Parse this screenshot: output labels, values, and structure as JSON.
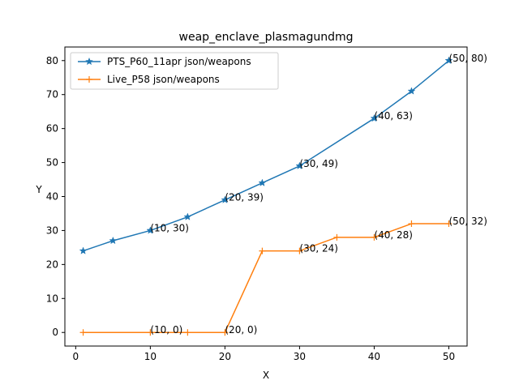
{
  "chart_data": {
    "type": "line",
    "title": "weap_enclave_plasmagundmg",
    "xlabel": "X",
    "ylabel": "Y",
    "xlim": [
      -1.45,
      52.45
    ],
    "ylim": [
      -4.0,
      84.0
    ],
    "xticks": [
      0,
      10,
      20,
      30,
      40,
      50
    ],
    "yticks": [
      0,
      10,
      20,
      30,
      40,
      50,
      60,
      70,
      80
    ],
    "grid": false,
    "legend_position": "upper-left",
    "series": [
      {
        "name": "PTS_P60_11apr json/weapons",
        "color": "#1f77b4",
        "marker": "star",
        "x": [
          1,
          5,
          10,
          15,
          20,
          25,
          30,
          40,
          45,
          50
        ],
        "y": [
          24,
          27,
          30,
          34,
          39,
          44,
          49,
          63,
          71,
          80
        ]
      },
      {
        "name": "Live_P58 json/weapons",
        "color": "#ff7f0e",
        "marker": "plus",
        "x": [
          1,
          10,
          15,
          20,
          25,
          30,
          35,
          40,
          45,
          50
        ],
        "y": [
          0,
          0,
          0,
          0,
          24,
          24,
          28,
          28,
          32,
          32
        ]
      }
    ],
    "annotations": [
      {
        "text": "(10, 30)",
        "x": 10,
        "y": 30,
        "color": "#000000"
      },
      {
        "text": "(20, 39)",
        "x": 20,
        "y": 39,
        "color": "#000000"
      },
      {
        "text": "(30, 49)",
        "x": 30,
        "y": 49,
        "color": "#000000"
      },
      {
        "text": "(40, 63)",
        "x": 40,
        "y": 63,
        "color": "#000000"
      },
      {
        "text": "(50, 80)",
        "x": 50,
        "y": 80,
        "color": "#000000"
      },
      {
        "text": "(10, 0)",
        "x": 10,
        "y": 0,
        "color": "#000000"
      },
      {
        "text": "(20, 0)",
        "x": 20,
        "y": 0,
        "color": "#000000"
      },
      {
        "text": "(30, 24)",
        "x": 30,
        "y": 24,
        "color": "#000000"
      },
      {
        "text": "(40, 28)",
        "x": 40,
        "y": 28,
        "color": "#000000"
      },
      {
        "text": "(50, 32)",
        "x": 50,
        "y": 32,
        "color": "#000000"
      }
    ]
  }
}
